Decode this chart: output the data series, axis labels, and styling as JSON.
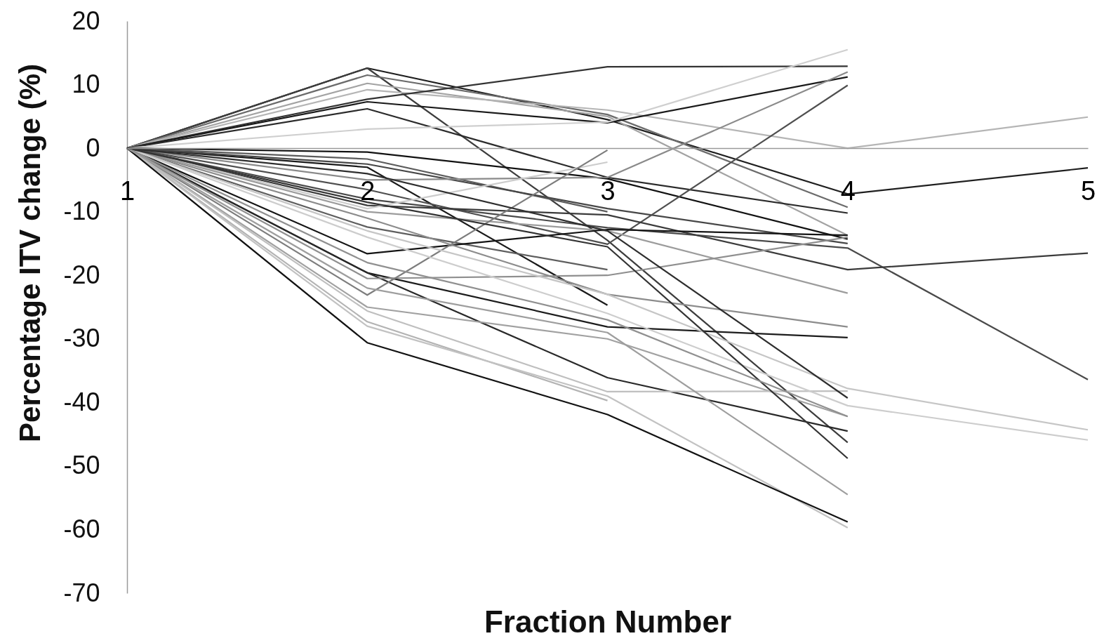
{
  "chart_data": {
    "type": "line",
    "xlabel": "Fraction Number",
    "ylabel": "Percentage ITV change (%)",
    "categories": [
      "1",
      "2",
      "3",
      "4",
      "5"
    ],
    "ylim": [
      -70,
      20
    ],
    "yticks": [
      -70,
      -60,
      -50,
      -40,
      -30,
      -20,
      -10,
      0,
      10,
      20
    ],
    "series": [
      {
        "color": "#1f1f1f",
        "values": [
          0,
          12.6,
          4.5,
          -7.2,
          -3.1
        ]
      },
      {
        "color": "#3d3d3d",
        "values": [
          0,
          12.6,
          -14.5,
          -46.3,
          null
        ]
      },
      {
        "color": "#6b6b6b",
        "values": [
          0,
          11.5,
          5.3,
          -9.3,
          null
        ]
      },
      {
        "color": "#a3a3a3",
        "values": [
          0,
          10.2,
          5.0,
          -13.7,
          null
        ]
      },
      {
        "color": "#b5b5b5",
        "values": [
          0,
          9.2,
          6.0,
          0,
          4.9
        ]
      },
      {
        "color": "#333333",
        "values": [
          0,
          7.7,
          12.8,
          12.9,
          null
        ]
      },
      {
        "color": "#1a1a1a",
        "values": [
          0,
          7.3,
          4.0,
          11.2,
          null
        ]
      },
      {
        "color": "#2b2b2b",
        "values": [
          0,
          6.2,
          -4.6,
          -10.2,
          null
        ]
      },
      {
        "color": "#cfcfcf",
        "values": [
          0,
          3.0,
          4.1,
          15.5,
          null
        ]
      },
      {
        "color": "#121212",
        "values": [
          0,
          -0.6,
          -4.8,
          -14.3,
          null
        ]
      },
      {
        "color": "#5c5c5c",
        "values": [
          0,
          -1.7,
          -10.0,
          null,
          null
        ]
      },
      {
        "color": "#1a1a1a",
        "values": [
          0,
          -3.0,
          -24.7,
          null,
          null
        ]
      },
      {
        "color": "#474747",
        "values": [
          0,
          -2.5,
          -9.5,
          -15.0,
          null
        ]
      },
      {
        "color": "#8a8a8a",
        "values": [
          0,
          -5.0,
          -4.6,
          12.0,
          null
        ]
      },
      {
        "color": "#4f4f4f",
        "values": [
          0,
          -6.5,
          -15.1,
          9.9,
          null
        ]
      },
      {
        "color": "#4a4a4a",
        "values": [
          0,
          -8.0,
          -12.5,
          -15.7,
          -36.4
        ]
      },
      {
        "color": "#3b3b3b",
        "values": [
          0,
          -9.0,
          -10.5,
          -19.1,
          -16.5
        ]
      },
      {
        "color": "#cccccc",
        "values": [
          0,
          -9.5,
          -2.2,
          null,
          null
        ]
      },
      {
        "color": "#9c9c9c",
        "values": [
          0,
          -10.0,
          -13.0,
          -22.8,
          null
        ]
      },
      {
        "color": "#5e5e5e",
        "values": [
          0,
          -12.4,
          -19.1,
          null,
          null
        ]
      },
      {
        "color": "#141414",
        "values": [
          0,
          -16.6,
          -12.8,
          -13.7,
          null
        ]
      },
      {
        "color": "#1c1c1c",
        "values": [
          0,
          -19.6,
          -28.1,
          -29.8,
          null
        ]
      },
      {
        "color": "#292929",
        "values": [
          0,
          -19.6,
          -36.1,
          -44.5,
          null
        ]
      },
      {
        "color": "#8f8f8f",
        "values": [
          0,
          -20.5,
          -20.0,
          -14.0,
          null
        ]
      },
      {
        "color": "#7d7d7d",
        "values": [
          0,
          -23.1,
          -0.3,
          null,
          null
        ]
      },
      {
        "color": "#a1a1a1",
        "values": [
          0,
          -25.0,
          -30.0,
          -42.2,
          null
        ]
      },
      {
        "color": "#bfbfbf",
        "values": [
          0,
          -25.6,
          -38.3,
          -38.2,
          null
        ]
      },
      {
        "color": "#b3b3b3",
        "values": [
          0,
          -27.3,
          -39.7,
          null,
          null
        ]
      },
      {
        "color": "#c2c2c2",
        "values": [
          0,
          -28.0,
          -39.0,
          -59.7,
          null
        ]
      },
      {
        "color": "#121212",
        "values": [
          0,
          -30.6,
          -41.9,
          -58.8,
          null
        ]
      },
      {
        "color": "#8c8c8c",
        "values": [
          0,
          -11.0,
          -23.0,
          -28.1,
          null
        ]
      },
      {
        "color": "#c6c6c6",
        "values": [
          0,
          -13.0,
          -23.0,
          -37.8,
          -44.3
        ]
      },
      {
        "color": "#cdcdcd",
        "values": [
          0,
          -14.0,
          -26.0,
          -40.5,
          -45.9
        ]
      },
      {
        "color": "#333333",
        "values": [
          0,
          -8.5,
          -15.5,
          -48.8,
          null
        ]
      },
      {
        "color": "#9e9e9e",
        "values": [
          0,
          -22.0,
          -29.0,
          -54.5,
          null
        ]
      },
      {
        "color": "#909090",
        "values": [
          0,
          -18.0,
          -27.0,
          -42.2,
          null
        ]
      },
      {
        "color": "#2e2e2e",
        "values": [
          0,
          -4.0,
          -13.0,
          -39.3,
          null
        ]
      }
    ]
  }
}
